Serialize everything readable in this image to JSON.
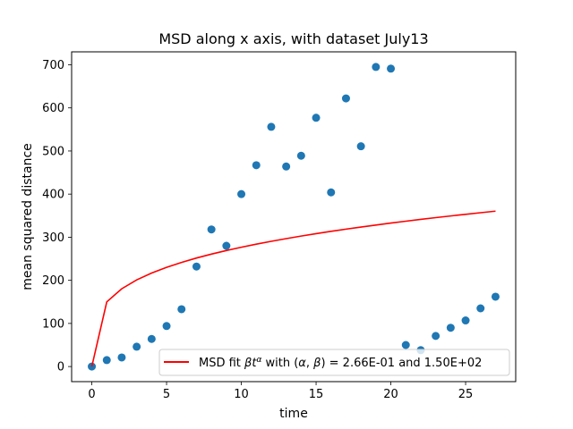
{
  "chart_data": {
    "type": "scatter",
    "title": "MSD along x axis, with dataset July13",
    "xlabel": "time",
    "ylabel": "mean squared distance",
    "xlim": [
      -1.35,
      28.35
    ],
    "ylim": [
      -35,
      730
    ],
    "xticks": [
      0,
      5,
      10,
      15,
      20,
      25
    ],
    "yticks": [
      0,
      100,
      200,
      300,
      400,
      500,
      600,
      700
    ],
    "grid": false,
    "legend_position": "lower-right",
    "points": {
      "color": "#1f77b4",
      "x": [
        0,
        1,
        2,
        3,
        4,
        5,
        6,
        7,
        8,
        9,
        10,
        11,
        12,
        13,
        14,
        15,
        16,
        17,
        18,
        19,
        20,
        21,
        22,
        23,
        24,
        25,
        26,
        27
      ],
      "y": [
        0,
        15,
        21,
        46,
        64,
        94,
        133,
        232,
        318,
        280,
        400,
        467,
        556,
        464,
        489,
        577,
        404,
        622,
        511,
        695,
        691,
        50,
        38,
        71,
        90,
        107,
        135,
        162
      ]
    },
    "fit": {
      "color": "#ff0000",
      "legend_label_prefix": "MSD fit ",
      "legend_label_math_beta": "β",
      "legend_label_math_t": "t",
      "legend_label_math_alpha": "α",
      "legend_label_mid": " with (",
      "legend_label_comma": ", ",
      "legend_label_suffix": ") =  2.66E-01 and 1.50E+02",
      "alpha": 0.266,
      "beta": 150,
      "x": [
        0,
        1,
        2,
        3,
        4,
        5,
        6,
        7,
        8,
        9,
        10,
        11,
        12,
        13,
        14,
        15,
        16,
        17,
        18,
        19,
        20,
        21,
        22,
        23,
        24,
        25,
        26,
        27
      ]
    }
  }
}
